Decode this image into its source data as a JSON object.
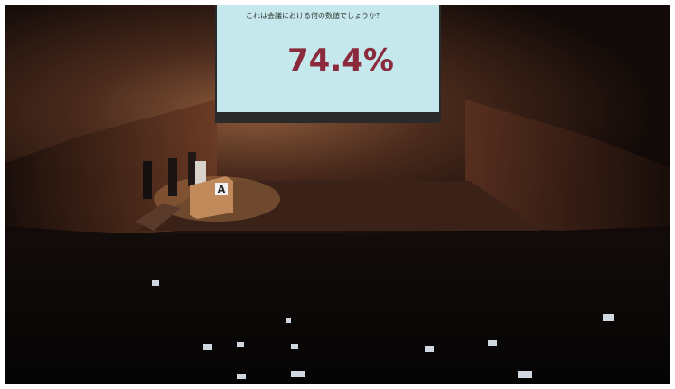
{
  "screen": {
    "question": "これは会議における何の数値でしょうか？",
    "answer": "74.4%"
  },
  "podium": {
    "label": "A"
  }
}
